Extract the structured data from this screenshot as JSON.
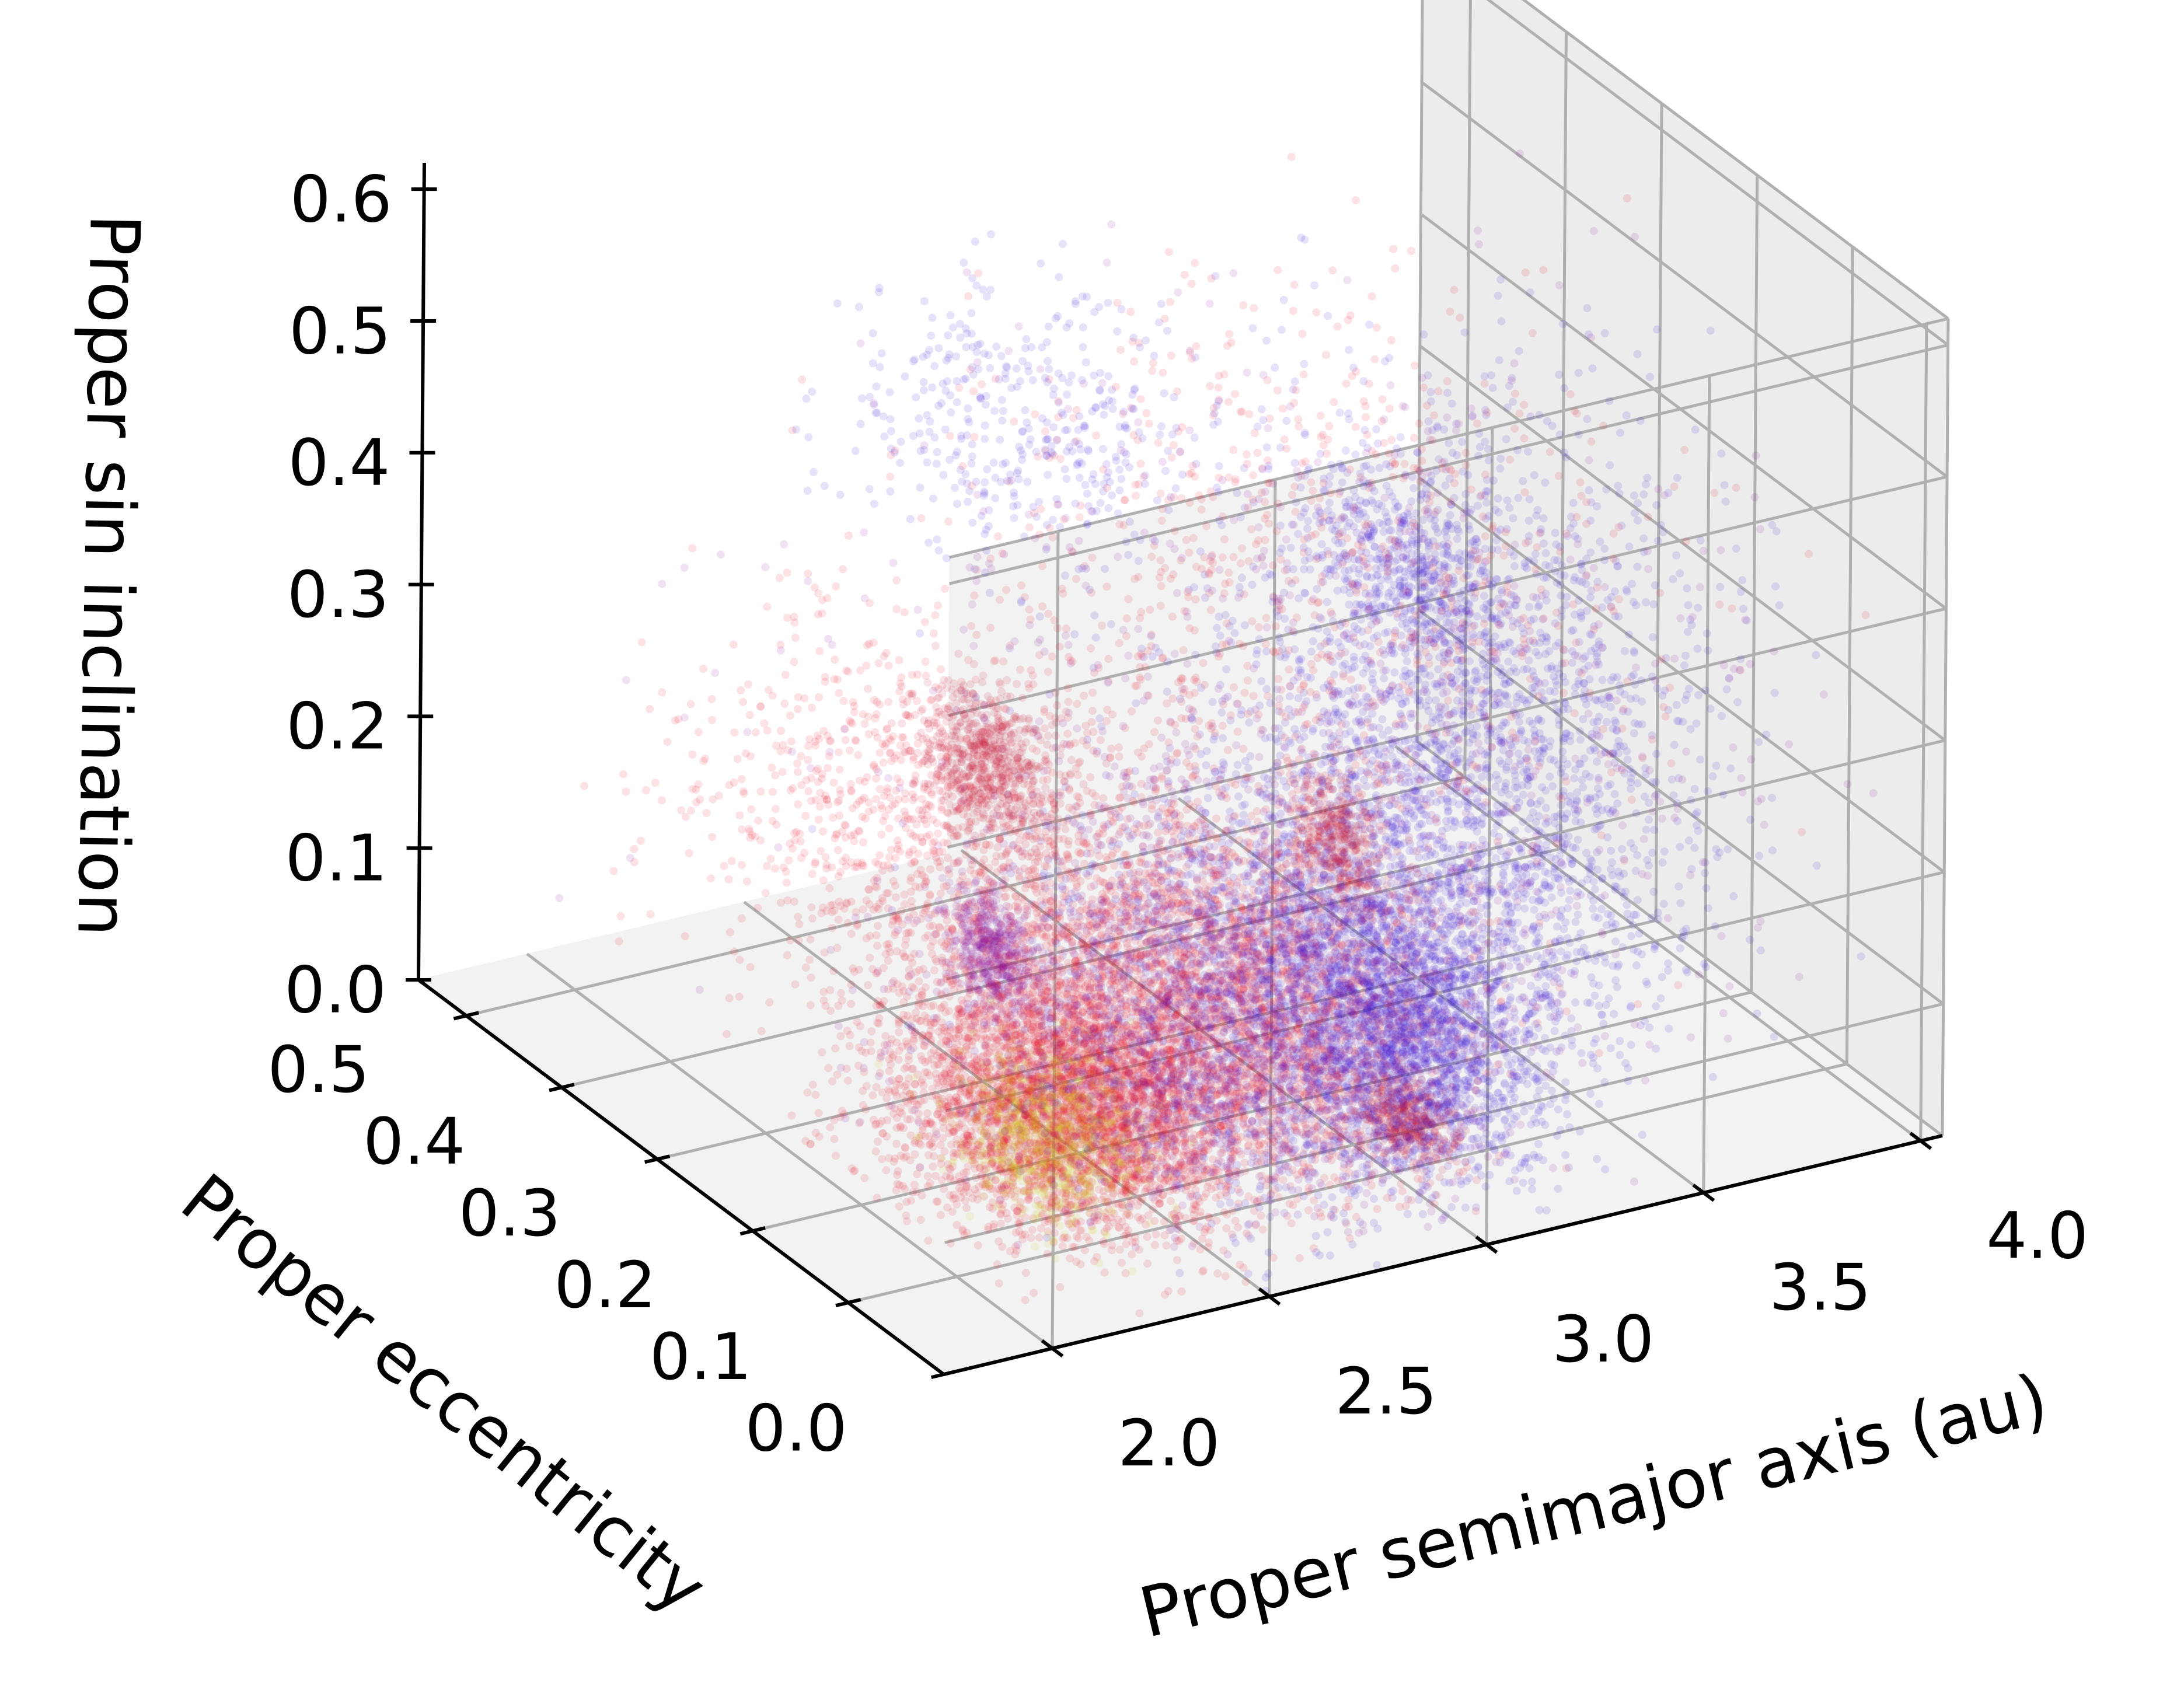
{
  "chart_data": {
    "type": "scatter",
    "projection": "3d",
    "title": "",
    "xlabel": "Proper semimajor axis (au)",
    "ylabel": "Proper eccentricity",
    "zlabel": "Proper sin inclination",
    "xlim": [
      1.75,
      4.05
    ],
    "ylim": [
      0.0,
      0.55
    ],
    "zlim": [
      0.0,
      0.62
    ],
    "x_ticks": [
      "2.0",
      "2.5",
      "3.0",
      "3.5",
      "4.0"
    ],
    "y_ticks": [
      "0.0",
      "0.1",
      "0.2",
      "0.3",
      "0.4",
      "0.5"
    ],
    "z_ticks": [
      "0.0",
      "0.1",
      "0.2",
      "0.3",
      "0.4",
      "0.5",
      "0.6"
    ],
    "grid": true,
    "legend": "none",
    "colors": [
      "#e8112d",
      "#3a14d9",
      "#8a0f9a",
      "#d8d020",
      "#c41230"
    ],
    "point_alpha": 0.12,
    "clusters": [
      {
        "x": 2.35,
        "y": 0.15,
        "z": 0.07,
        "sx": 0.16,
        "sy": 0.05,
        "sz": 0.05,
        "n": 4200,
        "color": "#e8112d"
      },
      {
        "x": 2.3,
        "y": 0.14,
        "z": 0.06,
        "sx": 0.08,
        "sy": 0.03,
        "sz": 0.03,
        "n": 900,
        "color": "#d8d020"
      },
      {
        "x": 2.75,
        "y": 0.14,
        "z": 0.11,
        "sx": 0.2,
        "sy": 0.07,
        "sz": 0.07,
        "n": 3200,
        "color": "#e8112d"
      },
      {
        "x": 2.85,
        "y": 0.12,
        "z": 0.12,
        "sx": 0.26,
        "sy": 0.08,
        "sz": 0.08,
        "n": 2800,
        "color": "#3a14d9"
      },
      {
        "x": 2.75,
        "y": 0.14,
        "z": 0.1,
        "sx": 0.25,
        "sy": 0.08,
        "sz": 0.07,
        "n": 2000,
        "color": "#8a0f9a"
      },
      {
        "x": 3.15,
        "y": 0.16,
        "z": 0.08,
        "sx": 0.1,
        "sy": 0.05,
        "sz": 0.04,
        "n": 1200,
        "color": "#3a14d9"
      },
      {
        "x": 3.25,
        "y": 0.15,
        "z": 0.2,
        "sx": 0.2,
        "sy": 0.08,
        "sz": 0.08,
        "n": 1500,
        "color": "#3a14d9"
      },
      {
        "x": 2.35,
        "y": 0.23,
        "z": 0.29,
        "sx": 0.05,
        "sy": 0.03,
        "sz": 0.025,
        "n": 700,
        "color": "#c41230"
      },
      {
        "x": 2.25,
        "y": 0.2,
        "z": 0.23,
        "sx": 0.2,
        "sy": 0.1,
        "sz": 0.07,
        "n": 1500,
        "color": "#e8112d"
      },
      {
        "x": 2.45,
        "y": 0.27,
        "z": 0.12,
        "sx": 0.03,
        "sy": 0.02,
        "sz": 0.02,
        "n": 500,
        "color": "#8a0f9a"
      },
      {
        "x": 3.2,
        "y": 0.18,
        "z": 0.4,
        "sx": 0.06,
        "sy": 0.04,
        "sz": 0.03,
        "n": 400,
        "color": "#3a14d9"
      },
      {
        "x": 3.3,
        "y": 0.15,
        "z": 0.35,
        "sx": 0.22,
        "sy": 0.09,
        "sz": 0.09,
        "n": 1300,
        "color": "#3a14d9"
      },
      {
        "x": 3.05,
        "y": 0.2,
        "z": 0.38,
        "sx": 0.3,
        "sy": 0.12,
        "sz": 0.1,
        "n": 900,
        "color": "#e8112d"
      },
      {
        "x": 3.0,
        "y": 0.16,
        "z": 0.22,
        "sx": 0.03,
        "sy": 0.02,
        "sz": 0.02,
        "n": 350,
        "color": "#c41230"
      },
      {
        "x": 3.08,
        "y": 0.12,
        "z": 0.02,
        "sx": 0.03,
        "sy": 0.02,
        "sz": 0.015,
        "n": 400,
        "color": "#c41230"
      },
      {
        "x": 3.05,
        "y": 0.1,
        "z": 0.05,
        "sx": 0.1,
        "sy": 0.04,
        "sz": 0.03,
        "n": 500,
        "color": "#3a14d9"
      },
      {
        "x": 2.7,
        "y": 0.35,
        "z": 0.45,
        "sx": 0.15,
        "sy": 0.05,
        "sz": 0.05,
        "n": 400,
        "color": "#3a14d9"
      },
      {
        "x": 3.0,
        "y": 0.15,
        "z": 0.25,
        "sx": 0.5,
        "sy": 0.15,
        "sz": 0.15,
        "n": 900,
        "color": "#8a0f9a"
      }
    ]
  }
}
